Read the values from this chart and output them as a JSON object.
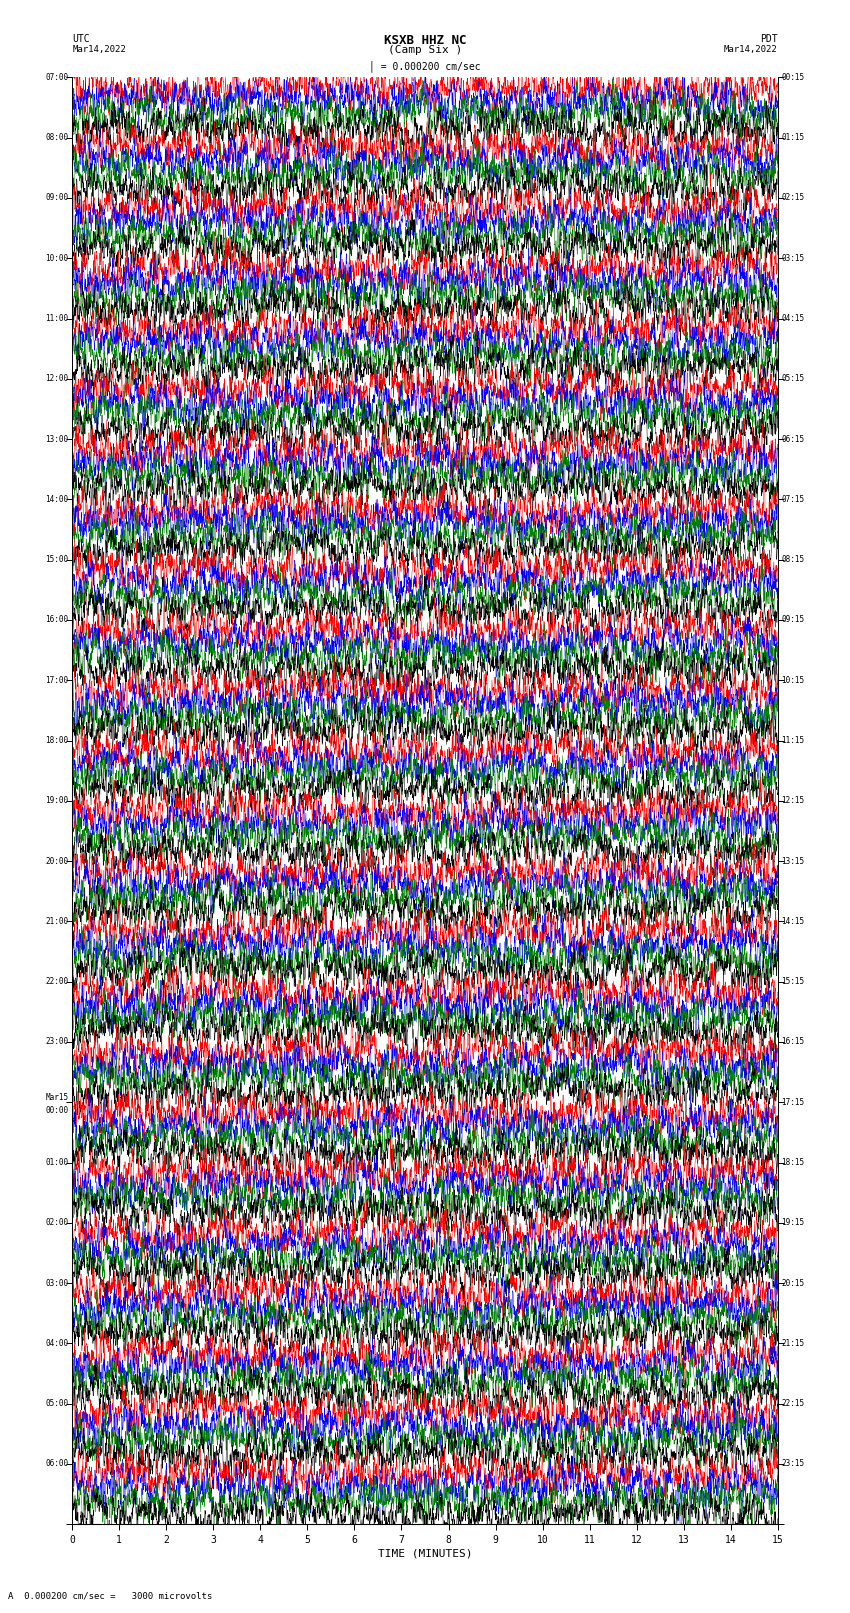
{
  "title_line1": "KSXB HHZ NC",
  "title_line2": "(Camp Six )",
  "scale_text": "= 0.000200 cm/sec",
  "scale_label": "A",
  "scale_value": "A  0.000200 cm/sec =   3000 microvolts",
  "utc_label": "UTC",
  "date_left": "Mar14,2022",
  "pdt_label": "PDT",
  "date_right": "Mar14,2022",
  "xlabel": "TIME (MINUTES)",
  "left_times": [
    "07:00",
    "08:00",
    "09:00",
    "10:00",
    "11:00",
    "12:00",
    "13:00",
    "14:00",
    "15:00",
    "16:00",
    "17:00",
    "18:00",
    "19:00",
    "20:00",
    "21:00",
    "22:00",
    "23:00",
    "Mar15",
    "01:00",
    "02:00",
    "03:00",
    "04:00",
    "05:00",
    "06:00"
  ],
  "left_times2": [
    "",
    "",
    "",
    "",
    "",
    "",
    "",
    "",
    "",
    "",
    "",
    "",
    "",
    "",
    "",
    "",
    "",
    "00:00",
    "",
    "",
    "",
    "",
    "",
    ""
  ],
  "right_times": [
    "00:15",
    "01:15",
    "02:15",
    "03:15",
    "04:15",
    "05:15",
    "06:15",
    "07:15",
    "08:15",
    "09:15",
    "10:15",
    "11:15",
    "12:15",
    "13:15",
    "14:15",
    "15:15",
    "16:15",
    "17:15",
    "18:15",
    "19:15",
    "20:15",
    "21:15",
    "22:15",
    "23:15"
  ],
  "n_rows": 24,
  "n_samples": 3600,
  "colors": [
    "red",
    "blue",
    "green",
    "black"
  ],
  "bg_color": "white",
  "line_width": 0.35,
  "x_ticks": [
    0,
    1,
    2,
    3,
    4,
    5,
    6,
    7,
    8,
    9,
    10,
    11,
    12,
    13,
    14,
    15
  ],
  "figwidth": 8.5,
  "figheight": 16.13,
  "dpi": 100
}
